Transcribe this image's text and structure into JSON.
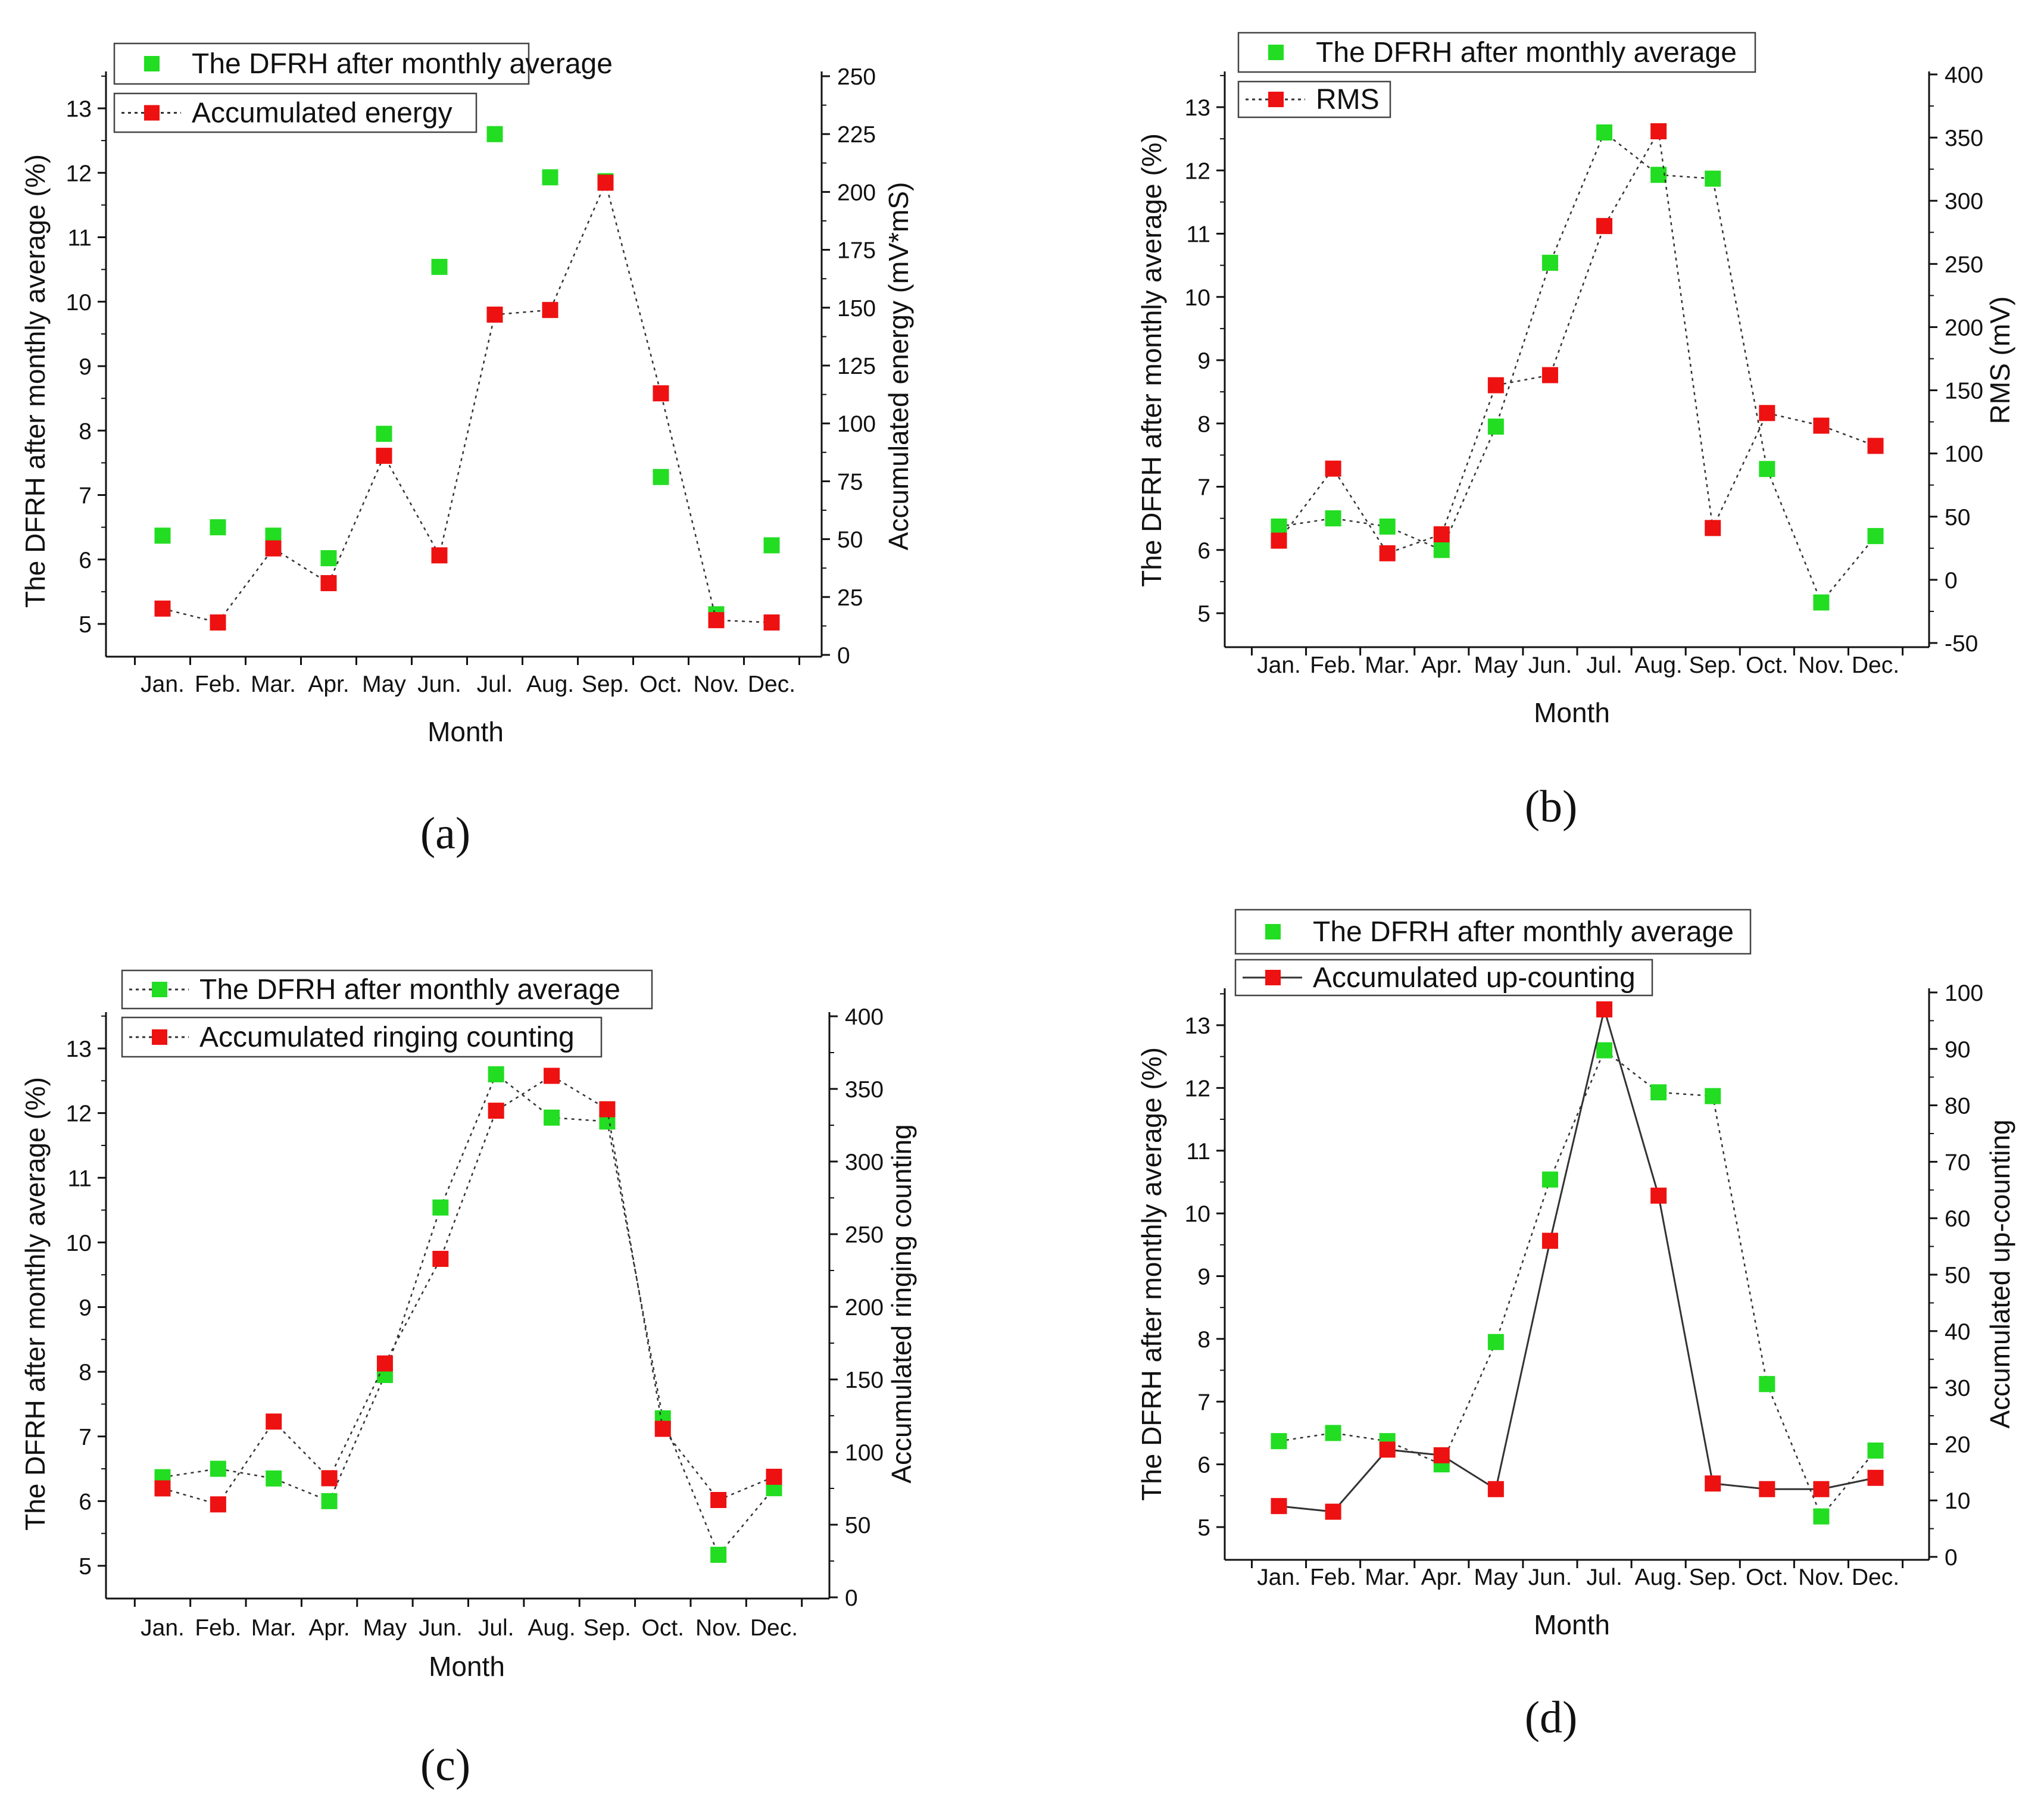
{
  "colors": {
    "dfrh": "#22dd22",
    "metric": "#ee1111",
    "axis": "#111111"
  },
  "chart_data": [
    {
      "type": "line",
      "panel_label": "(a)",
      "categories": [
        "Jan.",
        "Feb.",
        "Mar.",
        "Apr.",
        "May",
        "Jun.",
        "Jul.",
        "Aug.",
        "Sep.",
        "Oct.",
        "Nov.",
        "Dec."
      ],
      "xlabel": "Month",
      "ylabel_left": "The DFRH after monthly average (%)",
      "ylabel_right": "Accumulated energy (mV*mS)",
      "ylim_left": [
        4.5,
        13.5
      ],
      "ylim_right": [
        0,
        250
      ],
      "left_ticks": [
        5,
        6,
        7,
        8,
        9,
        10,
        11,
        12,
        13
      ],
      "right_ticks": [
        0,
        25,
        50,
        75,
        100,
        125,
        150,
        175,
        200,
        225,
        250
      ],
      "series": [
        {
          "name": "The DFRH after monthly average",
          "axis": "left",
          "line": "none",
          "values": [
            6.37,
            6.5,
            6.37,
            6.02,
            7.95,
            10.54,
            12.6,
            11.93,
            11.87,
            7.28,
            5.15,
            6.22
          ]
        },
        {
          "name": "Accumulated energy",
          "axis": "right",
          "line": "dotted",
          "values": [
            20,
            14,
            46,
            31,
            86,
            43,
            147,
            149,
            204,
            113,
            15,
            14
          ]
        }
      ]
    },
    {
      "type": "line",
      "panel_label": "(b)",
      "categories": [
        "Jan.",
        "Feb.",
        "Mar.",
        "Apr.",
        "May",
        "Jun.",
        "Jul.",
        "Aug.",
        "Sep.",
        "Oct.",
        "Nov.",
        "Dec."
      ],
      "xlabel": "Month",
      "ylabel_left": "The DFRH after monthly average (%)",
      "ylabel_right": "RMS (mV)",
      "ylim_left": [
        4.5,
        13.5
      ],
      "ylim_right": [
        -50,
        400
      ],
      "left_ticks": [
        5,
        6,
        7,
        8,
        9,
        10,
        11,
        12,
        13
      ],
      "right_ticks": [
        -50,
        0,
        50,
        100,
        150,
        200,
        250,
        300,
        350,
        400
      ],
      "series": [
        {
          "name": "The DFRH after monthly average",
          "axis": "left",
          "line": "dotted",
          "values": [
            6.37,
            6.5,
            6.37,
            6.0,
            7.95,
            10.54,
            12.6,
            11.93,
            11.87,
            7.28,
            5.17,
            6.22
          ]
        },
        {
          "name": "RMS",
          "axis": "right",
          "line": "dotted",
          "values": [
            31,
            88,
            21,
            36,
            154,
            162,
            280,
            355,
            41,
            132,
            122,
            106
          ]
        }
      ]
    },
    {
      "type": "line",
      "panel_label": "(c)",
      "categories": [
        "Jan.",
        "Feb.",
        "Mar.",
        "Apr.",
        "May",
        "Jun.",
        "Jul.",
        "Aug.",
        "Sep.",
        "Oct.",
        "Nov.",
        "Dec."
      ],
      "xlabel": "Month",
      "ylabel_left": "The DFRH after monthly average (%)",
      "ylabel_right": "Accumulated ringing counting",
      "ylim_left": [
        4.5,
        13.5
      ],
      "ylim_right": [
        0,
        400
      ],
      "left_ticks": [
        5,
        6,
        7,
        8,
        9,
        10,
        11,
        12,
        13
      ],
      "right_ticks": [
        0,
        50,
        100,
        150,
        200,
        250,
        300,
        350,
        400
      ],
      "series": [
        {
          "name": "The DFRH after monthly average",
          "axis": "left",
          "line": "dotted",
          "values": [
            6.37,
            6.5,
            6.35,
            6.0,
            7.95,
            10.54,
            12.6,
            11.93,
            11.87,
            7.28,
            5.17,
            6.2
          ]
        },
        {
          "name": "Accumulated ringing counting",
          "axis": "right",
          "line": "dotted",
          "values": [
            75,
            64,
            121,
            82,
            161,
            233,
            335,
            359,
            336,
            116,
            67,
            83
          ]
        }
      ]
    },
    {
      "type": "line",
      "panel_label": "(d)",
      "categories": [
        "Jan.",
        "Feb.",
        "Mar.",
        "Apr.",
        "May",
        "Jun.",
        "Jul.",
        "Aug.",
        "Sep.",
        "Oct.",
        "Nov.",
        "Dec."
      ],
      "xlabel": "Month",
      "ylabel_left": "The DFRH after monthly average (%)",
      "ylabel_right": "Accumulated up-counting",
      "ylim_left": [
        4.5,
        13.5
      ],
      "ylim_right": [
        0,
        100
      ],
      "left_ticks": [
        5,
        6,
        7,
        8,
        9,
        10,
        11,
        12,
        13
      ],
      "right_ticks": [
        0,
        10,
        20,
        30,
        40,
        50,
        60,
        70,
        80,
        90,
        100
      ],
      "series": [
        {
          "name": "The DFRH after monthly average",
          "axis": "left",
          "line": "dotted",
          "values": [
            6.37,
            6.5,
            6.37,
            6.0,
            7.95,
            10.54,
            12.6,
            11.93,
            11.87,
            7.28,
            5.17,
            6.22
          ]
        },
        {
          "name": "Accumulated up-counting",
          "axis": "right",
          "line": "solid",
          "values": [
            9,
            8,
            19,
            18,
            12,
            56,
            97,
            64,
            13,
            12,
            12,
            14
          ]
        }
      ]
    }
  ]
}
